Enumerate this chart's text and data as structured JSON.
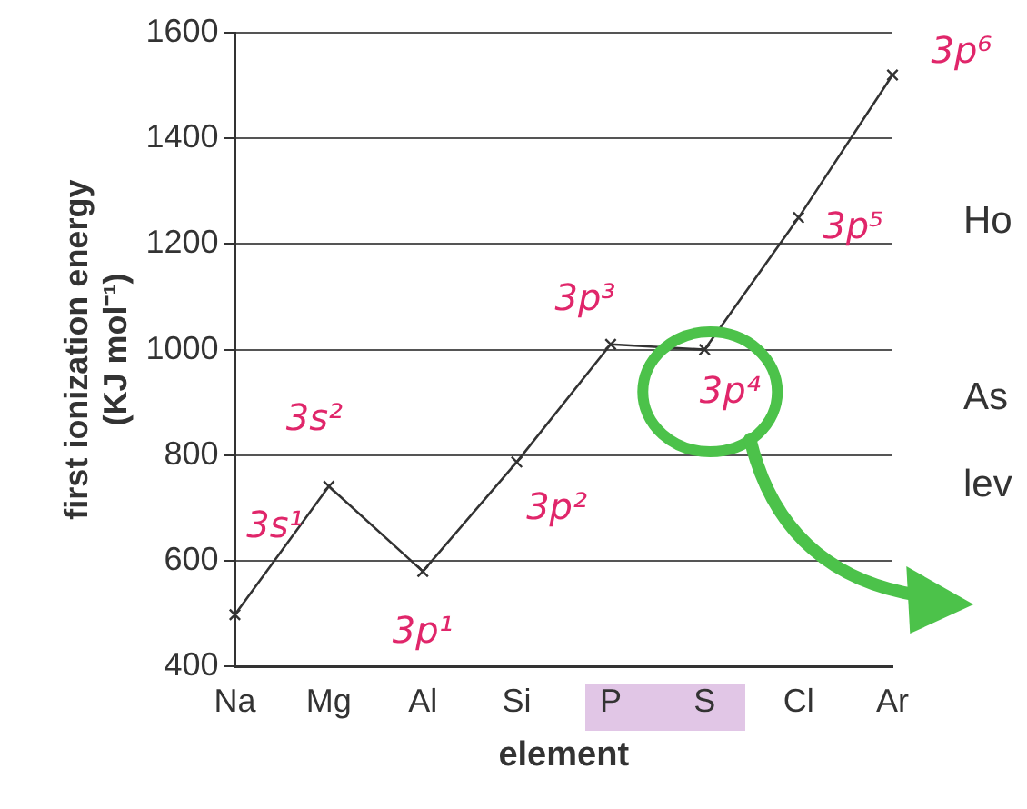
{
  "chart_data": {
    "type": "line",
    "xlabel": "element",
    "ylabel": "first ionization energy\n(KJ mol⁻¹)",
    "categories": [
      "Na",
      "Mg",
      "Al",
      "Si",
      "P",
      "S",
      "Cl",
      "Ar"
    ],
    "series": [
      {
        "color": "#333333",
        "values": [
          498,
          741,
          580,
          787,
          1010,
          1000,
          1250,
          1520
        ]
      }
    ],
    "ylim": [
      400,
      1600
    ],
    "yticks": [
      400,
      600,
      800,
      1000,
      1200,
      1400,
      1600
    ],
    "grid": "y",
    "marker": "cross",
    "line_style": "solid",
    "legend": false,
    "annotations": [
      {
        "text": "3s¹",
        "x": "Na",
        "y": 498
      },
      {
        "text": "3s²",
        "x": "Mg",
        "y": 741
      },
      {
        "text": "3p¹",
        "x": "Al",
        "y": 580
      },
      {
        "text": "3p²",
        "x": "Si",
        "y": 787
      },
      {
        "text": "3p³",
        "x": "P",
        "y": 1010
      },
      {
        "text": "3p⁴",
        "x": "S",
        "y": 1000
      },
      {
        "text": "3p⁵",
        "x": "Cl",
        "y": 1250
      },
      {
        "text": "3p⁶",
        "x": "Ar",
        "y": 1520
      },
      "Ho",
      "As",
      "lev"
    ]
  }
}
